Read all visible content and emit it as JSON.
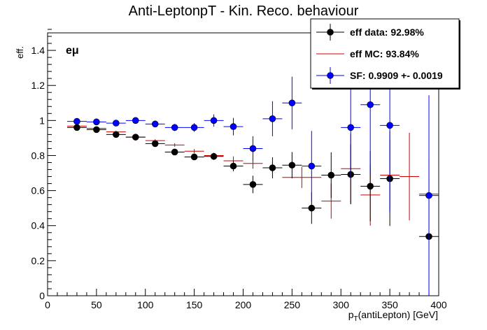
{
  "chart_data": {
    "type": "scatter",
    "title": "Anti-LeptonpT - Kin. Reco. behaviour",
    "ylabel": "eff.",
    "xlabel_main": "p",
    "xlabel_sub": "T",
    "xlabel_rest": "(antiLepton) [GeV]",
    "annotation": "eμ",
    "xlim": [
      0,
      400
    ],
    "ylim": [
      0,
      1.5
    ],
    "x_ticks": [
      0,
      50,
      100,
      150,
      200,
      250,
      300,
      350,
      400
    ],
    "y_ticks": [
      0,
      0.2,
      0.4,
      0.6,
      0.8,
      1,
      1.2,
      1.4
    ],
    "legend": {
      "placement": "top-right",
      "entries": [
        {
          "label": "eff data: 92.98%",
          "style": "marker-line",
          "color": "#000000"
        },
        {
          "label": "eff MC: 93.84%",
          "style": "line",
          "color": "#cc0000"
        },
        {
          "label": "SF: 0.9909 +- 0.0019",
          "style": "marker-line",
          "color": "#0000ff"
        }
      ]
    },
    "series": [
      {
        "name": "eff data: 92.98%",
        "color": "#000000",
        "points": [
          {
            "x": 30,
            "xerr": 10,
            "y": 0.96,
            "yerr": 0.01
          },
          {
            "x": 50,
            "xerr": 10,
            "y": 0.948,
            "yerr": 0.01
          },
          {
            "x": 70,
            "xerr": 10,
            "y": 0.92,
            "yerr": 0.01
          },
          {
            "x": 90,
            "xerr": 10,
            "y": 0.905,
            "yerr": 0.012
          },
          {
            "x": 110,
            "xerr": 10,
            "y": 0.868,
            "yerr": 0.012
          },
          {
            "x": 130,
            "xerr": 10,
            "y": 0.82,
            "yerr": 0.015
          },
          {
            "x": 150,
            "xerr": 10,
            "y": 0.792,
            "yerr": 0.017
          },
          {
            "x": 170,
            "xerr": 10,
            "y": 0.795,
            "yerr": 0.02
          },
          {
            "x": 190,
            "xerr": 10,
            "y": 0.74,
            "yerr": 0.03
          },
          {
            "x": 210,
            "xerr": 10,
            "y": 0.635,
            "yerr": 0.05
          },
          {
            "x": 230,
            "xerr": 10,
            "y": 0.73,
            "yerr": 0.06
          },
          {
            "x": 250,
            "xerr": 10,
            "y": 0.745,
            "yerr": 0.075
          },
          {
            "x": 270,
            "xerr": 10,
            "y": 0.5,
            "yerr": 0.09
          },
          {
            "x": 290,
            "xerr": 10,
            "y": 0.688,
            "yerr": 0.13
          },
          {
            "x": 310,
            "xerr": 10,
            "y": 0.692,
            "yerr": 0.17
          },
          {
            "x": 330,
            "xerr": 10,
            "y": 0.625,
            "yerr": 0.2
          },
          {
            "x": 350,
            "xerr": 10,
            "y": 0.668,
            "yerr": 0.27
          },
          {
            "x": 390,
            "xerr": 10,
            "y": 0.338,
            "yerr": 0.338
          }
        ]
      },
      {
        "name": "eff MC: 93.84%",
        "color": "#cc0000",
        "points": [
          {
            "x": 30,
            "xerr": 10,
            "y": 0.968,
            "yerr": 0.005
          },
          {
            "x": 50,
            "xerr": 10,
            "y": 0.955,
            "yerr": 0.005
          },
          {
            "x": 70,
            "xerr": 10,
            "y": 0.935,
            "yerr": 0.006
          },
          {
            "x": 90,
            "xerr": 10,
            "y": 0.905,
            "yerr": 0.007
          },
          {
            "x": 110,
            "xerr": 10,
            "y": 0.885,
            "yerr": 0.008
          },
          {
            "x": 130,
            "xerr": 10,
            "y": 0.86,
            "yerr": 0.01
          },
          {
            "x": 150,
            "xerr": 10,
            "y": 0.825,
            "yerr": 0.012
          },
          {
            "x": 170,
            "xerr": 10,
            "y": 0.8,
            "yerr": 0.015
          },
          {
            "x": 190,
            "xerr": 10,
            "y": 0.77,
            "yerr": 0.025
          },
          {
            "x": 210,
            "xerr": 10,
            "y": 0.755,
            "yerr": 0.03
          },
          {
            "x": 230,
            "xerr": 10,
            "y": 0.73,
            "yerr": 0.03
          },
          {
            "x": 260,
            "xerr": 20,
            "y": 0.675,
            "yerr": 0.06
          },
          {
            "x": 290,
            "xerr": 10,
            "y": 0.54,
            "yerr": 0.1
          },
          {
            "x": 310,
            "xerr": 10,
            "y": 0.725,
            "yerr": 0.2
          },
          {
            "x": 330,
            "xerr": 10,
            "y": 0.575,
            "yerr": 0.175
          },
          {
            "x": 350,
            "xerr": 10,
            "y": 0.688,
            "yerr": 0.2
          },
          {
            "x": 370,
            "xerr": 10,
            "y": 0.68,
            "yerr": 0.25
          },
          {
            "x": 390,
            "xerr": 10,
            "y": 0.58,
            "yerr": 0.2
          }
        ]
      },
      {
        "name": "SF: 0.9909 +- 0.0019",
        "color": "#0000ff",
        "points": [
          {
            "x": 30,
            "xerr": 10,
            "y": 0.995,
            "yerr": 0.012
          },
          {
            "x": 50,
            "xerr": 10,
            "y": 0.992,
            "yerr": 0.012
          },
          {
            "x": 70,
            "xerr": 10,
            "y": 0.985,
            "yerr": 0.012
          },
          {
            "x": 90,
            "xerr": 10,
            "y": 1.0,
            "yerr": 0.015
          },
          {
            "x": 110,
            "xerr": 10,
            "y": 0.98,
            "yerr": 0.015
          },
          {
            "x": 130,
            "xerr": 10,
            "y": 0.96,
            "yerr": 0.02
          },
          {
            "x": 150,
            "xerr": 10,
            "y": 0.96,
            "yerr": 0.025
          },
          {
            "x": 170,
            "xerr": 10,
            "y": 1.0,
            "yerr": 0.035
          },
          {
            "x": 190,
            "xerr": 10,
            "y": 0.965,
            "yerr": 0.05
          },
          {
            "x": 210,
            "xerr": 10,
            "y": 0.84,
            "yerr": 0.07
          },
          {
            "x": 230,
            "xerr": 10,
            "y": 1.01,
            "yerr": 0.1
          },
          {
            "x": 250,
            "xerr": 10,
            "y": 1.1,
            "yerr": 0.15
          },
          {
            "x": 270,
            "xerr": 10,
            "y": 0.74,
            "yerr": 0.2
          },
          {
            "x": 310,
            "xerr": 10,
            "y": 0.96,
            "yerr": 0.3
          },
          {
            "x": 330,
            "xerr": 10,
            "y": 1.09,
            "yerr": 0.4
          },
          {
            "x": 350,
            "xerr": 10,
            "y": 0.972,
            "yerr": 0.5
          },
          {
            "x": 390,
            "xerr": 10,
            "y": 0.572,
            "yerr": 0.572
          }
        ]
      }
    ]
  }
}
